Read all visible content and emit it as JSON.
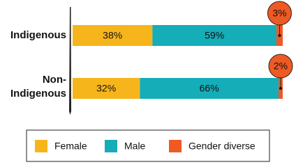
{
  "chart_data": {
    "type": "stacked_bar",
    "orientation": "horizontal",
    "categories": [
      "Indigenous",
      "Non-Indigenous"
    ],
    "series": [
      {
        "name": "Female",
        "color": "#f7b51c",
        "values": [
          38,
          32
        ],
        "value_labels": [
          "38%",
          "32%"
        ]
      },
      {
        "name": "Male",
        "color": "#14adb8",
        "values": [
          59,
          66
        ],
        "value_labels": [
          "59%",
          "66%"
        ]
      },
      {
        "name": "Gender diverse",
        "color": "#ef5a24",
        "values": [
          3,
          2
        ],
        "value_labels": [
          "3%",
          "2%"
        ]
      }
    ],
    "legend": "bottom"
  }
}
